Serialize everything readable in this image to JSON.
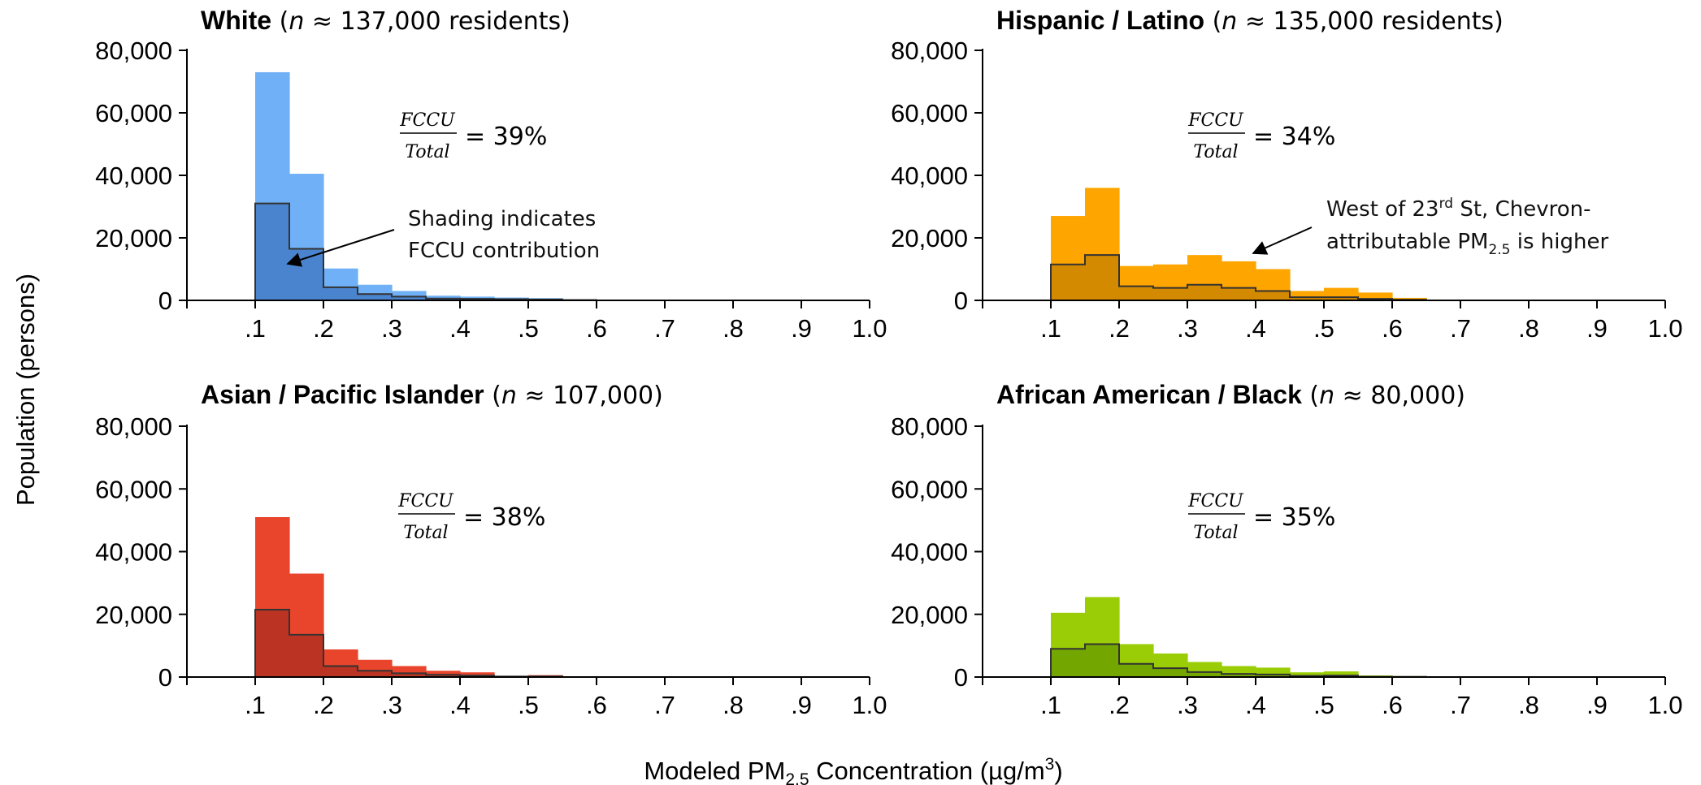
{
  "y_axis_label": "Population (persons)",
  "x_axis_label": {
    "main": "Modeled PM",
    "sub": "2.5",
    "rest": " Concentration (µg/m",
    "sup": "3",
    "close": ")"
  },
  "colors": {
    "white": "#6fb0f7",
    "white_dark": "#4a84cf",
    "hispanic": "#ffa500",
    "hispanic_dark": "#d48a00",
    "asian": "#e8452c",
    "asian_dark": "#bb3322",
    "black": "#9acd05",
    "black_dark": "#74a600"
  },
  "chart_data": [
    {
      "type": "bar",
      "title": {
        "group": "White",
        "n_var": "n",
        "n_text": " ≈ 137,000 residents"
      },
      "x_tick_labels": [
        ".1",
        ".2",
        ".3",
        ".4",
        ".5",
        ".6",
        ".7",
        ".8",
        ".9",
        "1.0"
      ],
      "y_tick_labels": [
        "0",
        "20,000",
        "40,000",
        "60,000",
        "80,000"
      ],
      "xlim": [
        0,
        1.0
      ],
      "ylim": [
        0,
        80000
      ],
      "bin_edges": [
        0.1,
        0.15,
        0.2,
        0.25,
        0.3,
        0.35,
        0.4,
        0.45,
        0.5,
        0.55,
        0.6
      ],
      "series": [
        {
          "name": "Total",
          "values": [
            73000,
            40500,
            10200,
            5000,
            3000,
            1500,
            1200,
            900,
            700,
            300
          ]
        },
        {
          "name": "FCCU",
          "values": [
            31000,
            16500,
            4200,
            2000,
            1200,
            600,
            500,
            400,
            300,
            100
          ]
        }
      ],
      "fraction": {
        "num": "FCCU",
        "den": "Total",
        "value": "= 39%"
      },
      "annotation": [
        "Shading indicates",
        "FCCU contribution"
      ]
    },
    {
      "type": "bar",
      "title": {
        "group": "Hispanic / Latino",
        "n_var": "n",
        "n_text": " ≈ 135,000 residents"
      },
      "x_tick_labels": [
        ".1",
        ".2",
        ".3",
        ".4",
        ".5",
        ".6",
        ".7",
        ".8",
        ".9",
        "1.0"
      ],
      "y_tick_labels": [
        "0",
        "20,000",
        "40,000",
        "60,000",
        "80,000"
      ],
      "xlim": [
        0,
        1.0
      ],
      "ylim": [
        0,
        80000
      ],
      "bin_edges": [
        0.1,
        0.15,
        0.2,
        0.25,
        0.3,
        0.35,
        0.4,
        0.45,
        0.5,
        0.55,
        0.6,
        0.65
      ],
      "series": [
        {
          "name": "Total",
          "values": [
            27000,
            36000,
            11000,
            11500,
            14500,
            12500,
            10000,
            3000,
            4000,
            2500,
            800
          ]
        },
        {
          "name": "FCCU",
          "values": [
            11500,
            14500,
            4500,
            4000,
            5000,
            4000,
            3000,
            1000,
            1000,
            500,
            200
          ]
        }
      ],
      "fraction": {
        "num": "FCCU",
        "den": "Total",
        "value": "= 34%"
      },
      "annotation": {
        "line1": "West of 23",
        "sup": "rd",
        "line1_rest": " St, Chevron-",
        "line2": "attributable PM",
        "sub": "2.5",
        "line2_rest": " is higher"
      }
    },
    {
      "type": "bar",
      "title": {
        "group": "Asian / Pacific Islander",
        "n_var": "n",
        "n_text": " ≈ 107,000)"
      },
      "x_tick_labels": [
        ".1",
        ".2",
        ".3",
        ".4",
        ".5",
        ".6",
        ".7",
        ".8",
        ".9",
        "1.0"
      ],
      "y_tick_labels": [
        "0",
        "20,000",
        "40,000",
        "60,000",
        "80,000"
      ],
      "xlim": [
        0,
        1.0
      ],
      "ylim": [
        0,
        80000
      ],
      "bin_edges": [
        0.1,
        0.15,
        0.2,
        0.25,
        0.3,
        0.35,
        0.4,
        0.45,
        0.5,
        0.55
      ],
      "series": [
        {
          "name": "Total",
          "values": [
            51000,
            33000,
            8800,
            5500,
            3500,
            2000,
            1500,
            400,
            600
          ]
        },
        {
          "name": "FCCU",
          "values": [
            21500,
            13500,
            3500,
            2000,
            1200,
            700,
            500,
            150,
            200
          ]
        }
      ],
      "fraction": {
        "num": "FCCU",
        "den": "Total",
        "value": "= 38%"
      }
    },
    {
      "type": "bar",
      "title": {
        "group": "African American / Black",
        "n_var": "n",
        "n_text": " ≈ 80,000)"
      },
      "x_tick_labels": [
        ".1",
        ".2",
        ".3",
        ".4",
        ".5",
        ".6",
        ".7",
        ".8",
        ".9",
        "1.0"
      ],
      "y_tick_labels": [
        "0",
        "20,000",
        "40,000",
        "60,000",
        "80,000"
      ],
      "xlim": [
        0,
        1.0
      ],
      "ylim": [
        0,
        80000
      ],
      "bin_edges": [
        0.1,
        0.15,
        0.2,
        0.25,
        0.3,
        0.35,
        0.4,
        0.45,
        0.5,
        0.55,
        0.6,
        0.65
      ],
      "series": [
        {
          "name": "Total",
          "values": [
            20500,
            25500,
            10500,
            7500,
            4800,
            3500,
            3000,
            1500,
            1800,
            500,
            300
          ]
        },
        {
          "name": "FCCU",
          "values": [
            9000,
            10500,
            4200,
            2800,
            1600,
            1000,
            800,
            400,
            500,
            100,
            50
          ]
        }
      ],
      "fraction": {
        "num": "FCCU",
        "den": "Total",
        "value": "= 35%"
      }
    }
  ]
}
